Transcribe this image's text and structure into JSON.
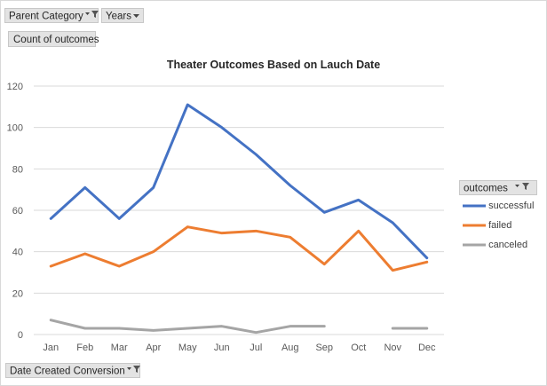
{
  "filters": {
    "parent_category": "Parent Category",
    "years": "Years"
  },
  "value_field": "Count of outcomes",
  "axis_field": "Date Created Conversion",
  "legend_field": "outcomes",
  "icons": {
    "filter": "filter-funnel-icon",
    "dropdown": "dropdown-arrow-icon"
  },
  "colors": {
    "successful": "#4472c4",
    "failed": "#ed7d31",
    "canceled": "#a5a5a5"
  },
  "chart_data": {
    "type": "line",
    "title": "Theater Outcomes Based on Lauch Date",
    "xlabel": "",
    "ylabel": "",
    "categories": [
      "Jan",
      "Feb",
      "Mar",
      "Apr",
      "May",
      "Jun",
      "Jul",
      "Aug",
      "Sep",
      "Oct",
      "Nov",
      "Dec"
    ],
    "ylim": [
      0,
      120
    ],
    "yticks": [
      0,
      20,
      40,
      60,
      80,
      100,
      120
    ],
    "grid": true,
    "legend_position": "right",
    "series": [
      {
        "name": "successful",
        "color": "#4472c4",
        "values": [
          56,
          71,
          56,
          71,
          111,
          100,
          87,
          72,
          59,
          65,
          54,
          37
        ]
      },
      {
        "name": "failed",
        "color": "#ed7d31",
        "values": [
          33,
          39,
          33,
          40,
          52,
          49,
          50,
          47,
          34,
          50,
          31,
          35
        ]
      },
      {
        "name": "canceled",
        "color": "#a5a5a5",
        "values": [
          7,
          3,
          3,
          2,
          3,
          4,
          1,
          4,
          4,
          null,
          3,
          3
        ]
      }
    ]
  }
}
